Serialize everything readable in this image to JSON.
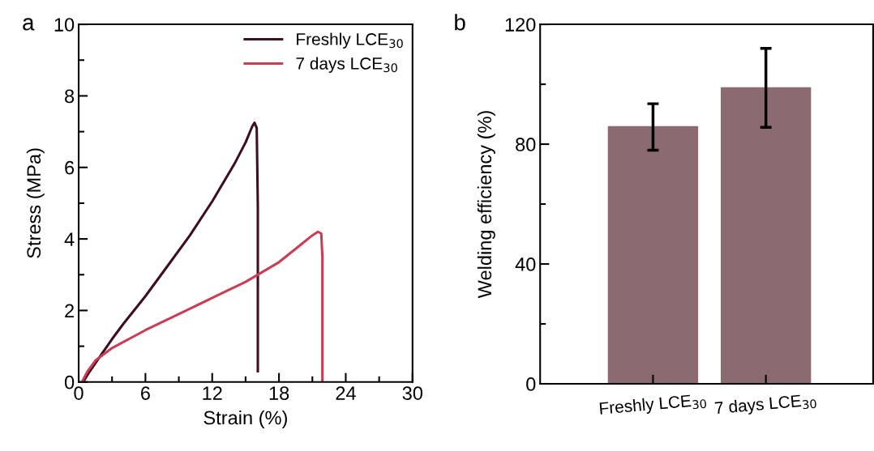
{
  "chart_data": [
    {
      "type": "line",
      "xlabel": "Strain (%)",
      "ylabel": "Stress (MPa)",
      "annotations": [
        "a"
      ],
      "xlim": [
        0,
        30
      ],
      "xticks": [
        0,
        {
          "value": 3,
          "label": null
        },
        6,
        {
          "value": 9,
          "label": null
        },
        12,
        {
          "value": 15,
          "label": null
        },
        18,
        {
          "value": 21,
          "label": null
        },
        24,
        {
          "value": 27,
          "label": null
        },
        30
      ],
      "ylim": [
        0,
        10
      ],
      "yticks": [
        0,
        {
          "value": 1,
          "label": null
        },
        2,
        {
          "value": 3,
          "label": null
        },
        4,
        {
          "value": 5,
          "label": null
        },
        6,
        {
          "value": 7,
          "label": null
        },
        8,
        {
          "value": 9,
          "label": null
        },
        10
      ],
      "legend": "top right",
      "grid": false,
      "marker": "none",
      "line_style": "solid",
      "series": [
        {
          "name": "Freshly LCE$_{30}$",
          "color": "#3d0f1c",
          "x": [
            0.4,
            1,
            2,
            3,
            4,
            6,
            8,
            10,
            12,
            14,
            15,
            15.6,
            15.8,
            16.0,
            16.1,
            16.1
          ],
          "values": [
            0,
            0.3,
            0.75,
            1.2,
            1.62,
            2.4,
            3.25,
            4.1,
            5.05,
            6.1,
            6.7,
            7.15,
            7.25,
            7.1,
            4.9,
            0.3
          ]
        },
        {
          "name": "7 days LCE$_{30}$",
          "color": "#cc3d55",
          "x": [
            0.3,
            0.8,
            1.5,
            3,
            6,
            9,
            12,
            15,
            18,
            20,
            21,
            21.5,
            21.8,
            21.9,
            21.9
          ],
          "values": [
            0,
            0.3,
            0.6,
            0.95,
            1.45,
            1.9,
            2.35,
            2.8,
            3.35,
            3.85,
            4.1,
            4.2,
            4.15,
            3.5,
            0
          ]
        }
      ]
    },
    {
      "type": "bar",
      "ylabel": "Welding efficiency (%)",
      "annotations": [
        "b"
      ],
      "categories": [
        "Freshly LCE$_{30}$",
        "7 days LCE$_{30}$"
      ],
      "ylim": [
        0,
        120
      ],
      "yticks": [
        0,
        {
          "value": 20,
          "label": null
        },
        40,
        {
          "value": 60,
          "label": null
        },
        80,
        {
          "value": 100,
          "label": null
        },
        120
      ],
      "grid": false,
      "color": "#8c6a72",
      "values": [
        86,
        99
      ],
      "errors": [
        [
          78,
          93.5
        ],
        [
          85.6,
          112
        ]
      ]
    }
  ]
}
